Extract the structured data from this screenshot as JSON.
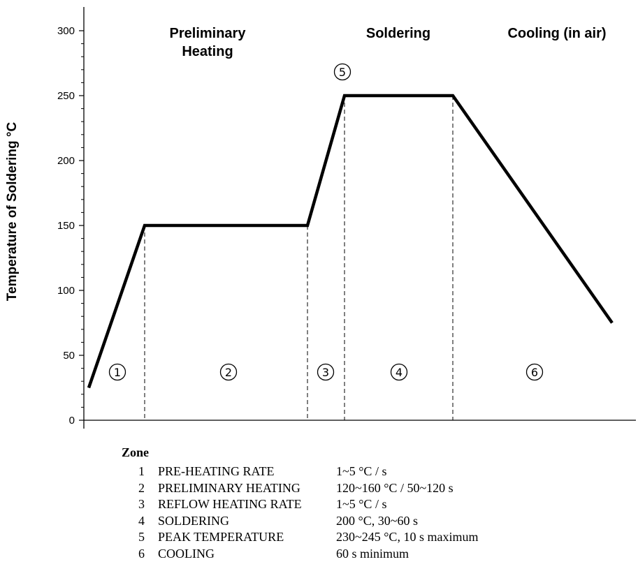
{
  "chart_data": {
    "type": "line",
    "title": "",
    "xlabel": "",
    "ylabel": "Temperature of Soldering °C",
    "ylim": [
      0,
      300
    ],
    "yticks": [
      0,
      50,
      100,
      150,
      200,
      250,
      300
    ],
    "series": [
      {
        "points": [
          {
            "x": 0,
            "y": 25
          },
          {
            "x": 1,
            "y": 150
          },
          {
            "x": 2,
            "y": 150
          },
          {
            "x": 3,
            "y": 250
          },
          {
            "x": 4,
            "y": 250
          },
          {
            "x": 5,
            "y": 75
          }
        ]
      }
    ],
    "zone_boundaries_y": [
      150,
      150,
      250,
      250
    ],
    "phase_labels": [
      {
        "line1": "Preliminary",
        "line2": "Heating"
      },
      {
        "line1": "Soldering",
        "line2": ""
      },
      {
        "line1": "Cooling (in air)",
        "line2": ""
      }
    ],
    "zone_markers": [
      "①",
      "②",
      "③",
      "④",
      "⑤",
      "⑥"
    ]
  },
  "legend": {
    "title": "Zone",
    "rows": [
      {
        "num": "1",
        "name": "PRE-HEATING RATE",
        "value": "1~5 °C / s"
      },
      {
        "num": "2",
        "name": "PRELIMINARY HEATING",
        "value": "120~160 °C / 50~120 s"
      },
      {
        "num": "3",
        "name": "REFLOW HEATING RATE",
        "value": "1~5 °C / s"
      },
      {
        "num": "4",
        "name": "SOLDERING",
        "value": "200 °C, 30~60 s"
      },
      {
        "num": "5",
        "name": "PEAK TEMPERATURE",
        "value": "230~245 °C, 10 s maximum"
      },
      {
        "num": "6",
        "name": "COOLING",
        "value": "60 s minimum"
      }
    ]
  }
}
